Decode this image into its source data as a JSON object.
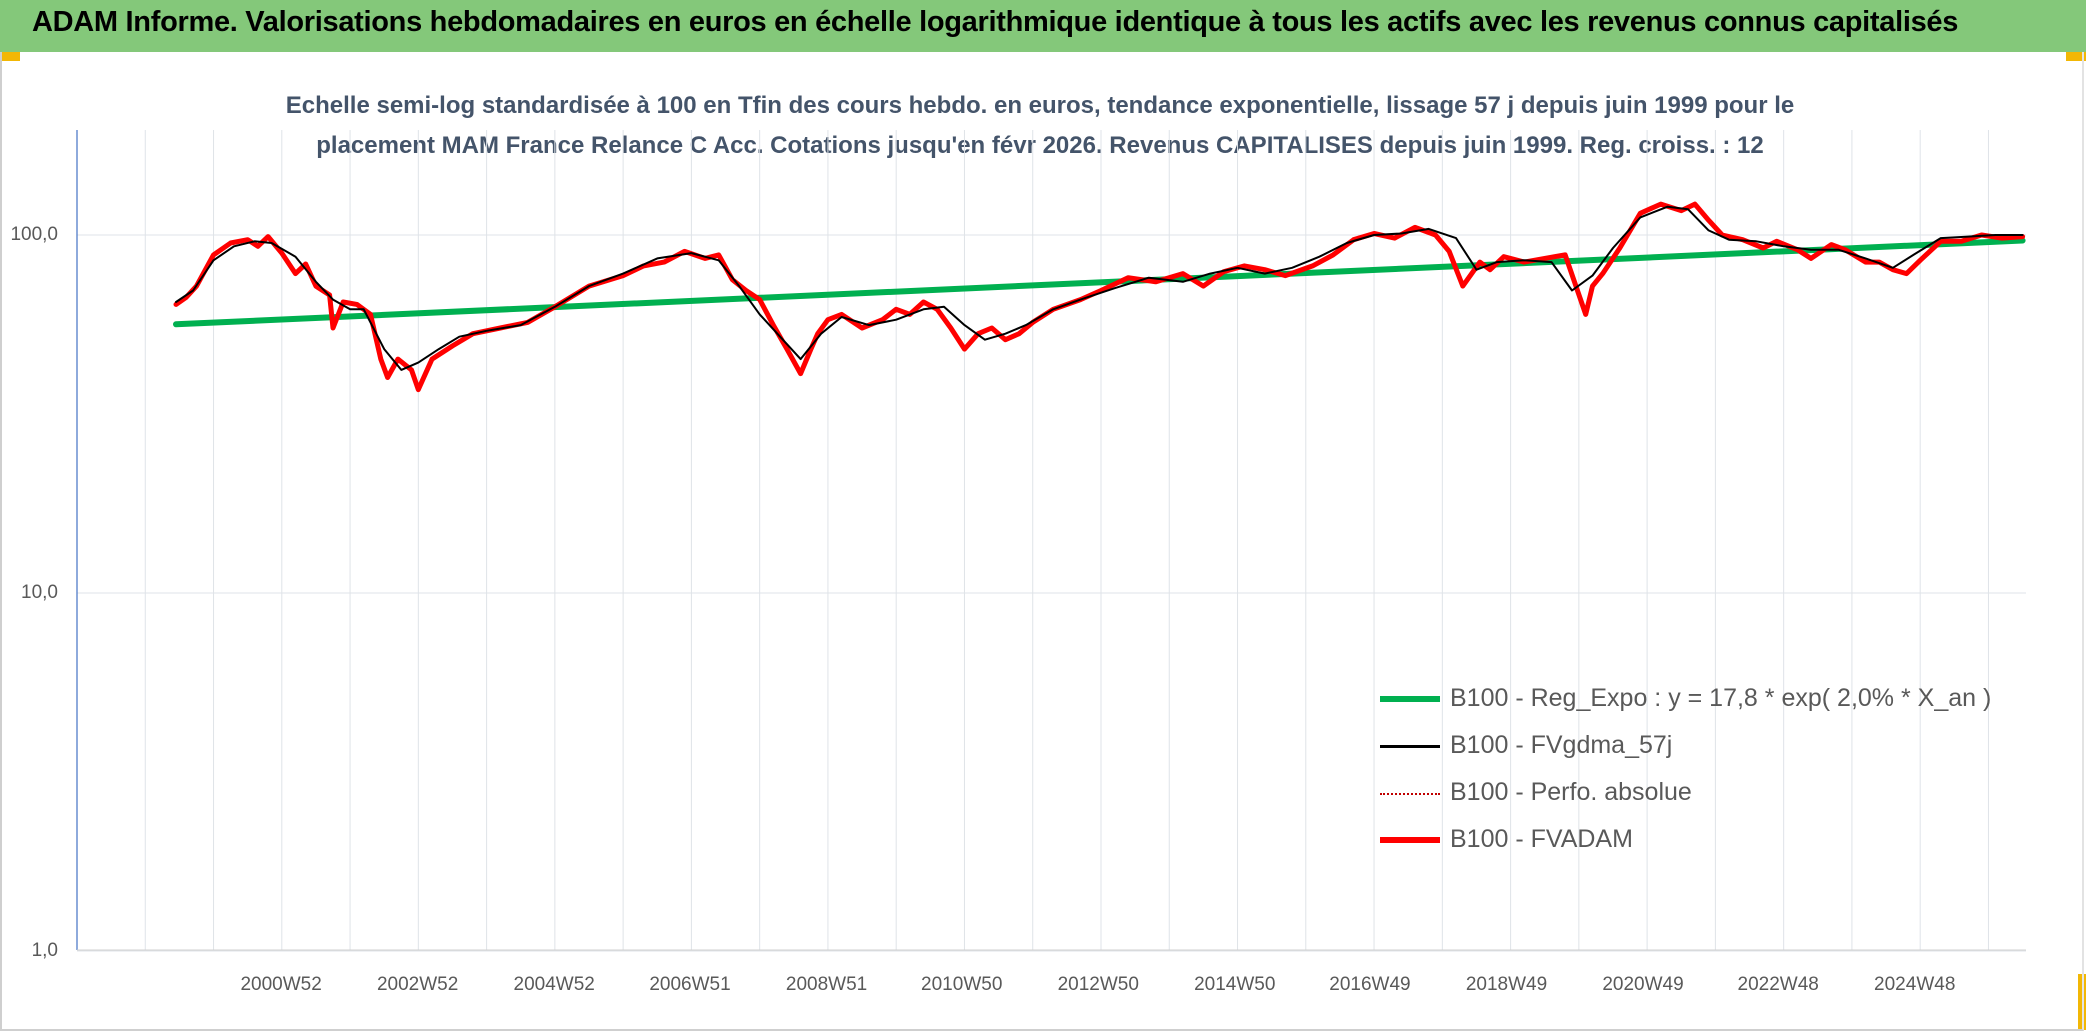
{
  "banner": {
    "title": "ADAM Informe. Valorisations hebdomadaires en euros en échelle logarithmique identique à tous les actifs avec les revenus connus capitalisés",
    "background": "#84c87a"
  },
  "chart_data": {
    "type": "line",
    "title_line1": "Echelle semi-log standardisée à 100 en Tfin des cours hebdo. en euros, tendance exponentielle, lissage 57 j depuis juin 1999 pour le",
    "title_line2": "placement MAM France Relance C Acc. Cotations jusqu'en févr 2026. Revenus CAPITALISES depuis juin 1999. Reg. croiss. : 12",
    "y_scale": "log",
    "ylim": [
      1,
      200
    ],
    "y_ticks": [
      "100,0",
      "10,0",
      "1,0"
    ],
    "y_tick_values": [
      100,
      10,
      1
    ],
    "xlim": [
      1998.0,
      2026.55
    ],
    "x_tick_labels": [
      "2000W52",
      "2002W52",
      "2004W52",
      "2006W51",
      "2008W51",
      "2010W50",
      "2012W50",
      "2014W50",
      "2016W49",
      "2018W49",
      "2020W49",
      "2022W48",
      "2024W48"
    ],
    "x_tick_values": [
      2000.99,
      2002.99,
      2004.99,
      2006.98,
      2008.98,
      2010.96,
      2012.96,
      2014.96,
      2016.94,
      2018.94,
      2020.94,
      2022.92,
      2024.92
    ],
    "grid": true,
    "legend_position": "bottom-right",
    "series": [
      {
        "name": "B100 - Reg_Expo : y = 17,8 * exp( 2,0% *  X_an )",
        "color": "#00b050",
        "style": "solid-thick",
        "x": [
          1999.45,
          2026.5
        ],
        "y": [
          56.3,
          96.5
        ]
      },
      {
        "name": "B100 - FVgdma_57j",
        "color": "#000000",
        "style": "solid-thin",
        "x": [
          1999.45,
          1999.7,
          2000.0,
          2000.3,
          2000.6,
          2000.85,
          2001.2,
          2001.5,
          2001.75,
          2002.0,
          2002.2,
          2002.5,
          2002.75,
          2003.0,
          2003.3,
          2003.6,
          2004.0,
          2004.5,
          2005.0,
          2005.5,
          2006.0,
          2006.5,
          2007.0,
          2007.4,
          2007.7,
          2008.0,
          2008.3,
          2008.6,
          2008.9,
          2009.2,
          2009.6,
          2010.0,
          2010.4,
          2010.7,
          2011.0,
          2011.3,
          2011.6,
          2011.9,
          2012.3,
          2012.7,
          2013.2,
          2013.7,
          2014.2,
          2014.6,
          2015.0,
          2015.4,
          2015.8,
          2016.2,
          2016.6,
          2017.0,
          2017.4,
          2017.8,
          2018.2,
          2018.5,
          2018.8,
          2019.2,
          2019.6,
          2019.9,
          2020.2,
          2020.5,
          2020.9,
          2021.3,
          2021.6,
          2021.9,
          2022.2,
          2022.6,
          2023.0,
          2023.4,
          2023.8,
          2024.2,
          2024.6,
          2024.9,
          2025.3,
          2025.7,
          2026.1,
          2026.5
        ],
        "y": [
          65,
          70,
          85,
          93,
          96,
          95,
          87,
          74,
          66,
          62,
          62,
          48,
          42,
          44,
          48,
          52,
          54,
          56,
          63,
          72,
          78,
          86,
          89,
          85,
          72,
          60,
          52,
          45,
          53,
          59,
          56,
          58,
          62,
          63,
          56,
          51,
          53,
          56,
          62,
          66,
          71,
          76,
          74,
          78,
          81,
          78,
          81,
          87,
          95,
          100,
          101,
          104,
          98,
          80,
          84,
          85,
          84,
          70,
          77,
          92,
          112,
          120,
          118,
          103,
          97,
          96,
          93,
          91,
          91,
          86,
          81,
          88,
          98,
          99,
          100,
          100
        ]
      },
      {
        "name": "B100 - Perfo. absolue",
        "color": "#c00000",
        "style": "dotted"
      },
      {
        "name": "B100 - FVADAM",
        "color": "#ff0000",
        "style": "solid-thick",
        "x": [
          1999.45,
          1999.6,
          1999.75,
          2000.0,
          2000.25,
          2000.5,
          2000.65,
          2000.8,
          2001.0,
          2001.2,
          2001.35,
          2001.5,
          2001.7,
          2001.75,
          2001.9,
          2002.1,
          2002.3,
          2002.45,
          2002.55,
          2002.7,
          2002.9,
          2003.0,
          2003.2,
          2003.5,
          2003.8,
          2004.2,
          2004.6,
          2005.0,
          2005.5,
          2006.0,
          2006.3,
          2006.6,
          2006.9,
          2007.2,
          2007.4,
          2007.6,
          2007.8,
          2008.0,
          2008.2,
          2008.4,
          2008.6,
          2008.75,
          2008.85,
          2009.0,
          2009.2,
          2009.5,
          2009.8,
          2010.0,
          2010.2,
          2010.4,
          2010.6,
          2010.8,
          2011.0,
          2011.2,
          2011.4,
          2011.6,
          2011.8,
          2012.0,
          2012.3,
          2012.7,
          2013.0,
          2013.4,
          2013.8,
          2014.2,
          2014.5,
          2014.8,
          2015.1,
          2015.4,
          2015.7,
          2016.1,
          2016.4,
          2016.7,
          2017.0,
          2017.3,
          2017.6,
          2017.9,
          2018.1,
          2018.3,
          2018.55,
          2018.7,
          2018.9,
          2019.2,
          2019.5,
          2019.8,
          2020.1,
          2020.2,
          2020.35,
          2020.6,
          2020.9,
          2021.2,
          2021.5,
          2021.7,
          2021.9,
          2022.1,
          2022.4,
          2022.7,
          2022.9,
          2023.2,
          2023.4,
          2023.7,
          2023.9,
          2024.2,
          2024.4,
          2024.6,
          2024.8,
          2025.0,
          2025.3,
          2025.6,
          2025.9,
          2026.2,
          2026.5
        ],
        "y": [
          64,
          67,
          72,
          88,
          95,
          97,
          93,
          99,
          89,
          78,
          83,
          72,
          68,
          55,
          65,
          64,
          60,
          45,
          40,
          45,
          42,
          37,
          45,
          49,
          53,
          55,
          57,
          63,
          72,
          77,
          82,
          84,
          90,
          86,
          88,
          75,
          70,
          66,
          56,
          48,
          41,
          48,
          53,
          58,
          60,
          55,
          58,
          62,
          60,
          65,
          62,
          55,
          48,
          53,
          55,
          51,
          53,
          57,
          62,
          66,
          70,
          76,
          74,
          78,
          72,
          79,
          82,
          80,
          77,
          82,
          88,
          97,
          101,
          98,
          105,
          100,
          90,
          72,
          84,
          80,
          87,
          84,
          86,
          88,
          60,
          72,
          78,
          92,
          115,
          122,
          117,
          122,
          110,
          100,
          97,
          92,
          96,
          91,
          86,
          94,
          91,
          84,
          84,
          80,
          78,
          85,
          96,
          96,
          100,
          98,
          99
        ]
      }
    ]
  }
}
